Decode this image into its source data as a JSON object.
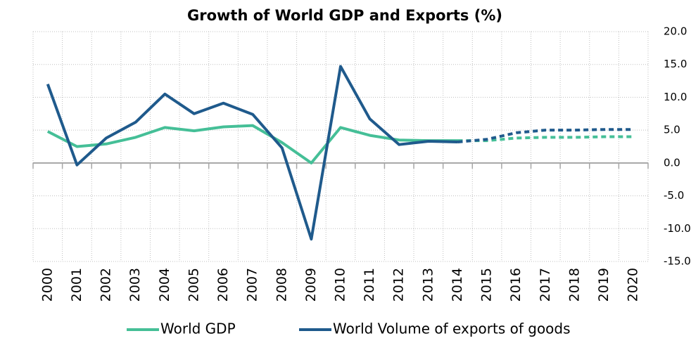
{
  "chart_data": {
    "type": "line",
    "title": "Growth of World GDP and Exports (%)",
    "categories": [
      "2000",
      "2001",
      "2002",
      "2003",
      "2004",
      "2005",
      "2006",
      "2007",
      "2008",
      "2009",
      "2010",
      "2011",
      "2012",
      "2013",
      "2014",
      "2015",
      "2016",
      "2017",
      "2018",
      "2019",
      "2020"
    ],
    "series": [
      {
        "name": "World GDP",
        "color": "#45bf97",
        "dashed_from": "2014",
        "values": [
          4.8,
          2.5,
          2.9,
          3.9,
          5.4,
          4.9,
          5.5,
          5.7,
          3.1,
          0.0,
          5.4,
          4.2,
          3.5,
          3.4,
          3.4,
          3.4,
          3.8,
          3.9,
          3.9,
          4.0,
          4.0
        ]
      },
      {
        "name": "World Volume of exports of goods",
        "color": "#1f5a8c",
        "dashed_from": "2014",
        "values": [
          12.0,
          -0.3,
          3.8,
          6.2,
          10.5,
          7.5,
          9.1,
          7.4,
          2.3,
          -11.6,
          14.7,
          6.7,
          2.8,
          3.3,
          3.2,
          3.6,
          4.6,
          5.0,
          5.0,
          5.1,
          5.1
        ]
      }
    ],
    "ylim": [
      -15,
      20
    ],
    "yticks": [
      {
        "value": -15,
        "label": "-15.0"
      },
      {
        "value": -10,
        "label": "-10.0"
      },
      {
        "value": -5,
        "label": "-5.0"
      },
      {
        "value": 0,
        "label": "0.0"
      },
      {
        "value": 5,
        "label": "5.0"
      },
      {
        "value": 10,
        "label": "10.0"
      },
      {
        "value": 15,
        "label": "15.0"
      },
      {
        "value": 20,
        "label": "20.0"
      }
    ],
    "y_axis_side": "right",
    "grid": true,
    "legend": "bottom"
  }
}
